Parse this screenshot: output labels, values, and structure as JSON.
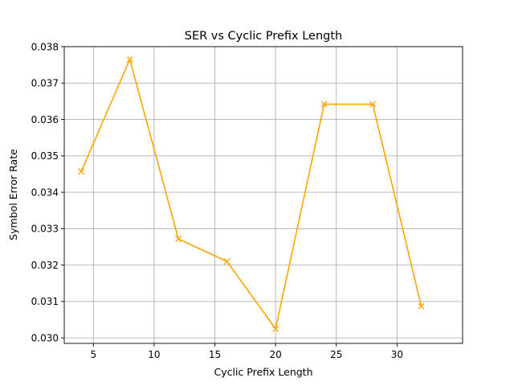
{
  "chart_data": {
    "type": "line",
    "title": "SER vs Cyclic Prefix Length",
    "xlabel": "Cyclic Prefix Length",
    "ylabel": "Symbol Error Rate",
    "xlim": [
      2.6,
      35.4
    ],
    "ylim": [
      0.02985,
      0.038
    ],
    "xticks": [
      5,
      10,
      15,
      20,
      25,
      30
    ],
    "xtick_labels": [
      "5",
      "10",
      "15",
      "20",
      "25",
      "30"
    ],
    "yticks": [
      0.03,
      0.031,
      0.032,
      0.033,
      0.034,
      0.035,
      0.036,
      0.037,
      0.038
    ],
    "ytick_labels": [
      "0.030",
      "0.031",
      "0.032",
      "0.033",
      "0.034",
      "0.035",
      "0.036",
      "0.037",
      "0.038"
    ],
    "grid": true,
    "series": [
      {
        "color": "#ffa500",
        "marker": "x",
        "x": [
          4,
          8,
          12,
          16,
          20,
          24,
          28,
          32
        ],
        "y": [
          0.03457,
          0.03765,
          0.03272,
          0.0321,
          0.03025,
          0.03642,
          0.03642,
          0.03087
        ]
      }
    ]
  }
}
